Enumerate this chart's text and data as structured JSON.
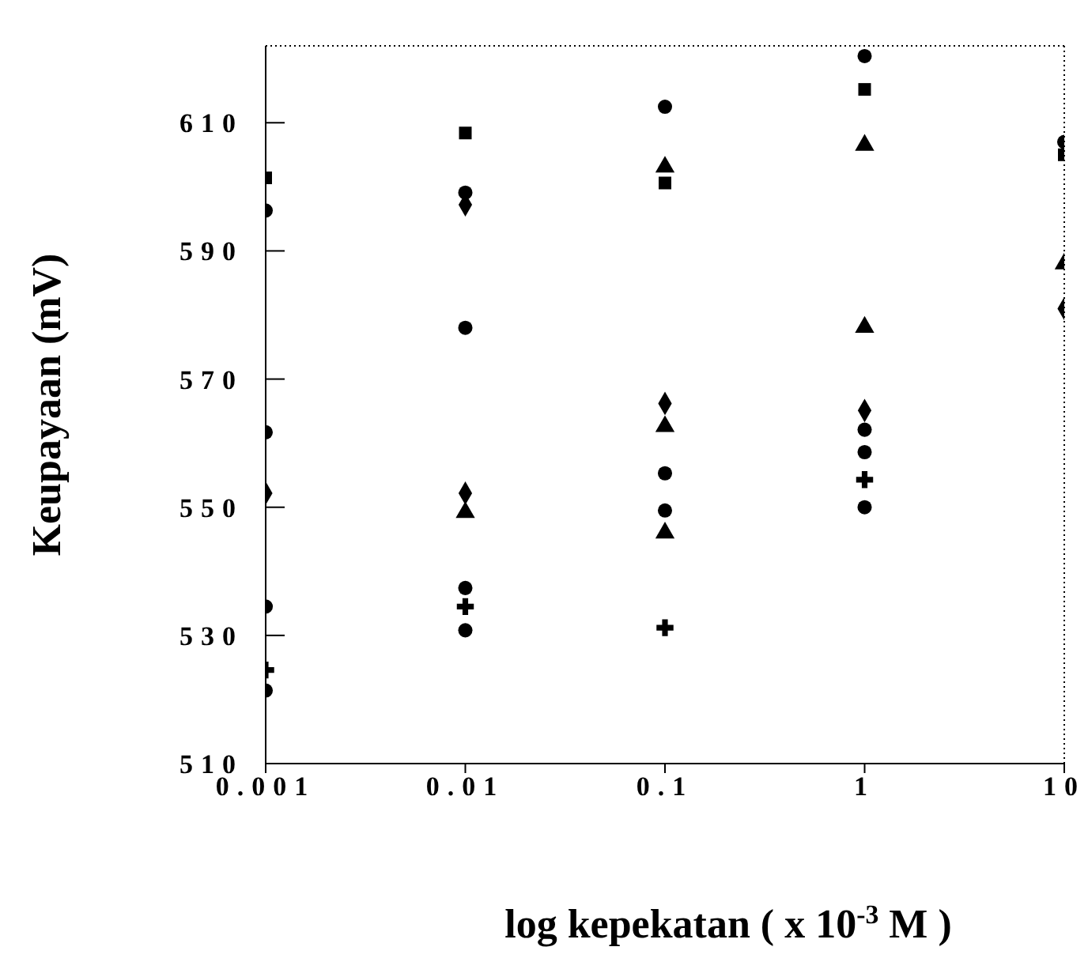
{
  "chart_data": {
    "type": "scatter",
    "xlabel": "log kepekatan ( x 10$^{-3}$ M )",
    "ylabel": "Keupayaan (mV)",
    "log": "x",
    "xlim": [
      0.001,
      10
    ],
    "xticks": [
      0.001,
      0.01,
      0.1,
      1,
      10
    ],
    "ylim": [
      510,
      622
    ],
    "yticks": [
      510,
      530,
      550,
      570,
      590,
      610
    ],
    "grid": false,
    "legend": false,
    "series": [
      {
        "color": "#000000",
        "marker": "square",
        "x": [
          0.001,
          0.01,
          0.1,
          1,
          10
        ],
        "values": [
          601.4,
          608.4,
          600.6,
          615.2,
          605
        ]
      },
      {
        "color": "#000000",
        "marker": "triangle",
        "x": [
          0.01,
          0.1,
          0.1,
          0.1,
          1,
          1,
          10
        ],
        "values": [
          549.2,
          603.1,
          562.6,
          546.0,
          606.5,
          578.1,
          588
        ]
      },
      {
        "color": "#000000",
        "marker": "cross",
        "x": [
          0.001,
          0.01,
          0.1,
          1
        ],
        "values": [
          524.6,
          534.5,
          531.2,
          554.3
        ]
      },
      {
        "color": "#000000",
        "marker": "diamond",
        "x": [
          0.001,
          0.01,
          0.01,
          0.1,
          1,
          10
        ],
        "values": [
          552.2,
          597.2,
          552.2,
          566.2,
          565.1,
          581
        ]
      },
      {
        "color": "#000000",
        "marker": "circle",
        "x": [
          0.001,
          0.001,
          0.001,
          0.001,
          0.01,
          0.01,
          0.01,
          0.01,
          0.1,
          0.1,
          0.1,
          1,
          1,
          1,
          1,
          10
        ],
        "values": [
          596.3,
          561.7,
          534.5,
          521.4,
          599.1,
          578.0,
          537.4,
          530.8,
          612.5,
          555.3,
          549.5,
          620.4,
          562.1,
          558.6,
          550.0,
          607
        ]
      }
    ]
  }
}
